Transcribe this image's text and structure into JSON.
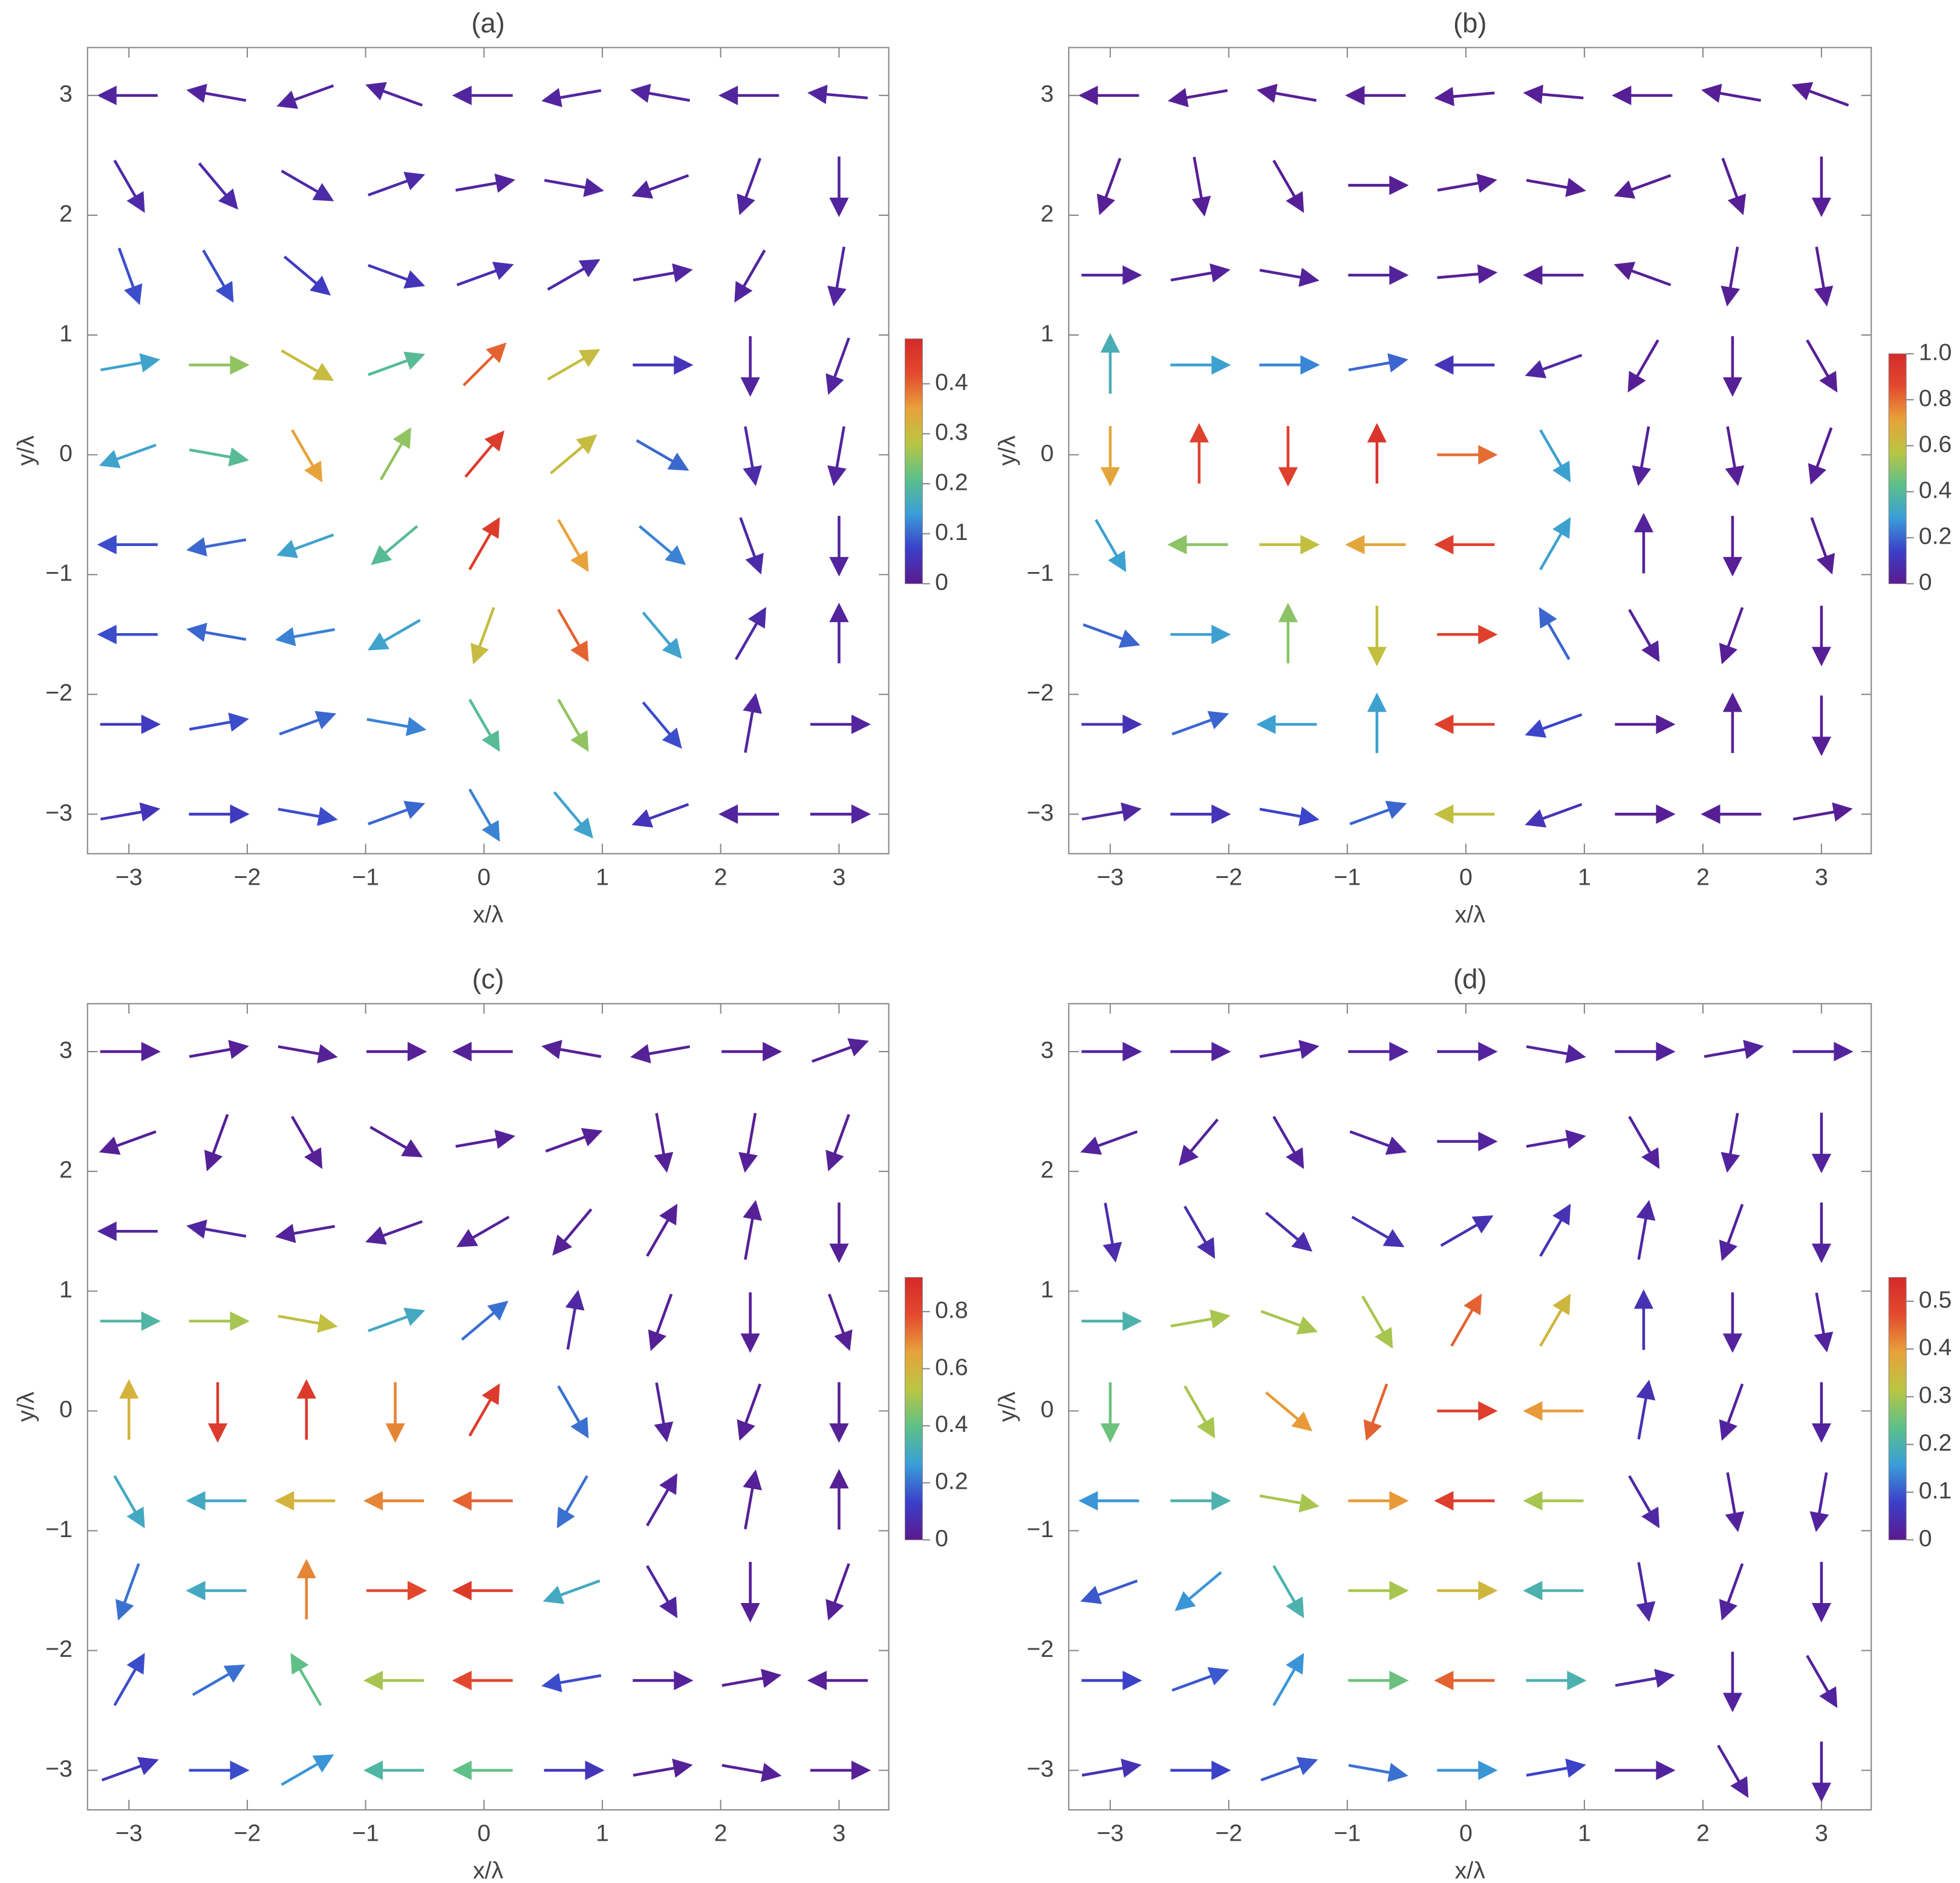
{
  "chart_data": [
    {
      "type": "quiver",
      "title": "(a)",
      "x_label": "x/λ",
      "y_label": "y/λ",
      "xlim": [
        -3.35,
        3.42
      ],
      "ylim": [
        -3.33,
        3.4
      ],
      "xticks": [
        {
          "value": -3,
          "label": "−3"
        },
        {
          "value": -2,
          "label": "−2"
        },
        {
          "value": -1,
          "label": "−1"
        },
        0,
        1,
        2,
        3
      ],
      "yticks": [
        {
          "value": -3,
          "label": "−3"
        },
        {
          "value": -2,
          "label": "−2"
        },
        {
          "value": -1,
          "label": "−1"
        },
        0,
        1,
        2,
        3
      ],
      "grid_x": [
        -3,
        -2.25,
        -1.5,
        -0.75,
        0,
        0.75,
        1.5,
        2.25,
        3
      ],
      "grid_y": [
        3,
        2.25,
        1.5,
        0.75,
        0,
        -0.75,
        -1.5,
        -2.25,
        -3
      ],
      "magnitude": [
        [
          0.02,
          0.02,
          0.02,
          0.02,
          0.02,
          0.02,
          0.02,
          0.02,
          0.02
        ],
        [
          0.03,
          0.03,
          0.03,
          0.03,
          0.02,
          0.02,
          0.02,
          0.02,
          0.02
        ],
        [
          0.08,
          0.08,
          0.06,
          0.05,
          0.04,
          0.03,
          0.02,
          0.02,
          0.02
        ],
        [
          0.15,
          0.25,
          0.3,
          0.2,
          0.4,
          0.3,
          0.05,
          0.02,
          0.02
        ],
        [
          0.15,
          0.2,
          0.35,
          0.25,
          0.45,
          0.3,
          0.1,
          0.03,
          0.02
        ],
        [
          0.08,
          0.1,
          0.15,
          0.2,
          0.45,
          0.35,
          0.12,
          0.03,
          0.02
        ],
        [
          0.08,
          0.1,
          0.12,
          0.15,
          0.3,
          0.4,
          0.15,
          0.03,
          0.02
        ],
        [
          0.06,
          0.08,
          0.1,
          0.12,
          0.2,
          0.25,
          0.08,
          0.02,
          0.02
        ],
        [
          0.05,
          0.06,
          0.08,
          0.1,
          0.12,
          0.15,
          0.05,
          0.02,
          0.02
        ]
      ],
      "angle": [
        [
          180,
          170,
          200,
          160,
          180,
          190,
          170,
          180,
          175
        ],
        [
          300,
          310,
          330,
          20,
          10,
          350,
          200,
          250,
          270
        ],
        [
          290,
          300,
          320,
          340,
          20,
          30,
          10,
          240,
          260
        ],
        [
          10,
          0,
          330,
          20,
          45,
          30,
          0,
          270,
          250
        ],
        [
          200,
          350,
          300,
          60,
          50,
          40,
          330,
          280,
          260
        ],
        [
          180,
          190,
          200,
          220,
          60,
          300,
          320,
          290,
          270
        ],
        [
          180,
          170,
          190,
          210,
          250,
          300,
          310,
          60,
          90
        ],
        [
          0,
          10,
          20,
          350,
          300,
          300,
          310,
          80,
          0
        ],
        [
          10,
          0,
          350,
          20,
          300,
          310,
          200,
          180,
          0
        ]
      ],
      "clim": [
        0,
        0.49
      ],
      "cticks": [
        0,
        0.1,
        0.2,
        0.3,
        0.4
      ],
      "colormap": [
        "#5b1a8e",
        "#3b3fc9",
        "#3a9ed8",
        "#5cc08a",
        "#b9c642",
        "#e8a23a",
        "#e34a2e",
        "#d42a2a"
      ]
    },
    {
      "type": "quiver",
      "title": "(b)",
      "x_label": "x/λ",
      "y_label": "y/λ",
      "xlim": [
        -3.35,
        3.42
      ],
      "ylim": [
        -3.33,
        3.4
      ],
      "xticks": [
        {
          "value": -3,
          "label": "−3"
        },
        {
          "value": -2,
          "label": "−2"
        },
        {
          "value": -1,
          "label": "−1"
        },
        0,
        1,
        2,
        3
      ],
      "yticks": [
        {
          "value": -3,
          "label": "−3"
        },
        {
          "value": -2,
          "label": "−2"
        },
        {
          "value": -1,
          "label": "−1"
        },
        0,
        1,
        2,
        3
      ],
      "grid_x": [
        -3,
        -2.25,
        -1.5,
        -0.75,
        0,
        0.75,
        1.5,
        2.25,
        3
      ],
      "grid_y": [
        3,
        2.25,
        1.5,
        0.75,
        0,
        -0.75,
        -1.5,
        -2.25,
        -3
      ],
      "magnitude": [
        [
          0.02,
          0.02,
          0.02,
          0.02,
          0.02,
          0.02,
          0.02,
          0.02,
          0.02
        ],
        [
          0.02,
          0.02,
          0.02,
          0.02,
          0.02,
          0.02,
          0.02,
          0.02,
          0.02
        ],
        [
          0.03,
          0.03,
          0.03,
          0.03,
          0.02,
          0.02,
          0.02,
          0.02,
          0.02
        ],
        [
          0.35,
          0.3,
          0.25,
          0.2,
          0.1,
          0.05,
          0.02,
          0.02,
          0.02
        ],
        [
          0.7,
          0.9,
          0.9,
          0.95,
          0.8,
          0.3,
          0.03,
          0.02,
          0.02
        ],
        [
          0.3,
          0.5,
          0.6,
          0.7,
          0.9,
          0.3,
          0.03,
          0.02,
          0.02
        ],
        [
          0.2,
          0.3,
          0.5,
          0.6,
          0.9,
          0.2,
          0.03,
          0.02,
          0.02
        ],
        [
          0.1,
          0.2,
          0.3,
          0.3,
          0.9,
          0.15,
          0.02,
          0.02,
          0.02
        ],
        [
          0.05,
          0.1,
          0.15,
          0.2,
          0.6,
          0.1,
          0.02,
          0.02,
          0.02
        ]
      ],
      "angle": [
        [
          180,
          190,
          170,
          180,
          185,
          175,
          180,
          170,
          160
        ],
        [
          250,
          280,
          300,
          0,
          10,
          350,
          200,
          290,
          270
        ],
        [
          0,
          10,
          350,
          0,
          5,
          180,
          160,
          260,
          280
        ],
        [
          90,
          0,
          0,
          10,
          180,
          200,
          240,
          270,
          300
        ],
        [
          270,
          90,
          270,
          90,
          0,
          300,
          260,
          280,
          250
        ],
        [
          300,
          180,
          0,
          180,
          180,
          60,
          90,
          270,
          290
        ],
        [
          340,
          0,
          90,
          270,
          0,
          120,
          300,
          250,
          270
        ],
        [
          0,
          20,
          180,
          90,
          180,
          200,
          0,
          90,
          270
        ],
        [
          10,
          0,
          350,
          20,
          180,
          200,
          0,
          180,
          10
        ]
      ],
      "clim": [
        0,
        1
      ],
      "cticks": [
        0,
        0.2,
        0.4,
        0.6,
        0.8,
        {
          "value": 1,
          "label": "1.0"
        }
      ],
      "colormap": [
        "#5b1a8e",
        "#3b3fc9",
        "#3a9ed8",
        "#5cc08a",
        "#b9c642",
        "#e8a23a",
        "#e34a2e",
        "#d42a2a"
      ]
    },
    {
      "type": "quiver",
      "title": "(c)",
      "x_label": "x/λ",
      "y_label": "y/λ",
      "xlim": [
        -3.35,
        3.42
      ],
      "ylim": [
        -3.33,
        3.4
      ],
      "xticks": [
        {
          "value": -3,
          "label": "−3"
        },
        {
          "value": -2,
          "label": "−2"
        },
        {
          "value": -1,
          "label": "−1"
        },
        0,
        1,
        2,
        3
      ],
      "yticks": [
        {
          "value": -3,
          "label": "−3"
        },
        {
          "value": -2,
          "label": "−2"
        },
        {
          "value": -1,
          "label": "−1"
        },
        0,
        1,
        2,
        3
      ],
      "grid_x": [
        -3,
        -2.25,
        -1.5,
        -0.75,
        0,
        0.75,
        1.5,
        2.25,
        3
      ],
      "grid_y": [
        3,
        2.25,
        1.5,
        0.75,
        0,
        -0.75,
        -1.5,
        -2.25,
        -3
      ],
      "magnitude": [
        [
          0.02,
          0.02,
          0.02,
          0.02,
          0.02,
          0.02,
          0.02,
          0.02,
          0.02
        ],
        [
          0.02,
          0.02,
          0.02,
          0.02,
          0.02,
          0.02,
          0.02,
          0.02,
          0.02
        ],
        [
          0.04,
          0.04,
          0.03,
          0.03,
          0.03,
          0.02,
          0.02,
          0.02,
          0.02
        ],
        [
          0.35,
          0.5,
          0.55,
          0.3,
          0.2,
          0.05,
          0.02,
          0.02,
          0.02
        ],
        [
          0.6,
          0.85,
          0.85,
          0.7,
          0.85,
          0.2,
          0.03,
          0.02,
          0.02
        ],
        [
          0.3,
          0.3,
          0.6,
          0.7,
          0.75,
          0.2,
          0.03,
          0.02,
          0.02
        ],
        [
          0.2,
          0.3,
          0.7,
          0.8,
          0.85,
          0.3,
          0.04,
          0.02,
          0.02
        ],
        [
          0.15,
          0.2,
          0.4,
          0.5,
          0.8,
          0.15,
          0.03,
          0.02,
          0.02
        ],
        [
          0.1,
          0.15,
          0.25,
          0.35,
          0.4,
          0.1,
          0.02,
          0.02,
          0.02
        ]
      ],
      "angle": [
        [
          0,
          10,
          350,
          0,
          180,
          170,
          190,
          0,
          20
        ],
        [
          200,
          250,
          300,
          330,
          10,
          20,
          280,
          260,
          250
        ],
        [
          180,
          170,
          190,
          200,
          210,
          230,
          60,
          80,
          270
        ],
        [
          0,
          0,
          350,
          20,
          40,
          80,
          250,
          270,
          290
        ],
        [
          90,
          270,
          90,
          270,
          60,
          300,
          280,
          250,
          270
        ],
        [
          300,
          180,
          180,
          180,
          180,
          240,
          60,
          80,
          90
        ],
        [
          250,
          180,
          90,
          0,
          180,
          200,
          300,
          270,
          250
        ],
        [
          60,
          30,
          120,
          180,
          180,
          190,
          0,
          10,
          180
        ],
        [
          20,
          0,
          30,
          180,
          180,
          0,
          10,
          350,
          0
        ]
      ],
      "clim": [
        0,
        0.92
      ],
      "cticks": [
        0,
        0.2,
        0.4,
        0.6,
        0.8
      ],
      "colormap": [
        "#5b1a8e",
        "#3b3fc9",
        "#3a9ed8",
        "#5cc08a",
        "#b9c642",
        "#e8a23a",
        "#e34a2e",
        "#d42a2a"
      ]
    },
    {
      "type": "quiver",
      "title": "(d)",
      "x_label": "x/λ",
      "y_label": "y/λ",
      "xlim": [
        -3.35,
        3.42
      ],
      "ylim": [
        -3.33,
        3.4
      ],
      "xticks": [
        {
          "value": -3,
          "label": "−3"
        },
        {
          "value": -2,
          "label": "−2"
        },
        {
          "value": -1,
          "label": "−1"
        },
        0,
        1,
        2,
        3
      ],
      "yticks": [
        {
          "value": -3,
          "label": "−3"
        },
        {
          "value": -2,
          "label": "−2"
        },
        {
          "value": -1,
          "label": "−1"
        },
        0,
        1,
        2,
        3
      ],
      "grid_x": [
        -3,
        -2.25,
        -1.5,
        -0.75,
        0,
        0.75,
        1.5,
        2.25,
        3
      ],
      "grid_y": [
        3,
        2.25,
        1.5,
        0.75,
        0,
        -0.75,
        -1.5,
        -2.25,
        -3
      ],
      "magnitude": [
        [
          0.02,
          0.02,
          0.02,
          0.02,
          0.02,
          0.02,
          0.02,
          0.02,
          0.02
        ],
        [
          0.02,
          0.02,
          0.02,
          0.02,
          0.02,
          0.02,
          0.02,
          0.02,
          0.02
        ],
        [
          0.04,
          0.04,
          0.04,
          0.05,
          0.05,
          0.05,
          0.03,
          0.02,
          0.02
        ],
        [
          0.2,
          0.3,
          0.3,
          0.3,
          0.45,
          0.35,
          0.05,
          0.02,
          0.02
        ],
        [
          0.25,
          0.3,
          0.4,
          0.45,
          0.5,
          0.4,
          0.05,
          0.02,
          0.02
        ],
        [
          0.15,
          0.2,
          0.3,
          0.4,
          0.5,
          0.3,
          0.03,
          0.02,
          0.02
        ],
        [
          0.1,
          0.15,
          0.2,
          0.3,
          0.35,
          0.2,
          0.03,
          0.02,
          0.02
        ],
        [
          0.08,
          0.1,
          0.15,
          0.25,
          0.45,
          0.2,
          0.03,
          0.02,
          0.02
        ],
        [
          0.05,
          0.08,
          0.1,
          0.12,
          0.15,
          0.08,
          0.02,
          0.02,
          0.02
        ]
      ],
      "angle": [
        [
          0,
          0,
          10,
          0,
          0,
          350,
          0,
          10,
          0
        ],
        [
          200,
          230,
          300,
          340,
          0,
          10,
          300,
          260,
          270
        ],
        [
          280,
          300,
          320,
          330,
          30,
          60,
          80,
          250,
          270
        ],
        [
          0,
          10,
          340,
          300,
          60,
          60,
          90,
          270,
          280
        ],
        [
          270,
          300,
          320,
          250,
          0,
          180,
          80,
          250,
          270
        ],
        [
          180,
          0,
          350,
          0,
          180,
          180,
          300,
          280,
          260
        ],
        [
          200,
          220,
          300,
          0,
          0,
          180,
          280,
          250,
          270
        ],
        [
          0,
          20,
          60,
          0,
          180,
          0,
          10,
          270,
          300
        ],
        [
          10,
          0,
          20,
          350,
          0,
          10,
          0,
          300,
          270
        ]
      ],
      "clim": [
        0,
        0.55
      ],
      "cticks": [
        0,
        0.1,
        0.2,
        0.3,
        0.4,
        0.5
      ],
      "colormap": [
        "#5b1a8e",
        "#3b3fc9",
        "#3a9ed8",
        "#5cc08a",
        "#b9c642",
        "#e8a23a",
        "#e34a2e",
        "#d42a2a"
      ]
    }
  ]
}
